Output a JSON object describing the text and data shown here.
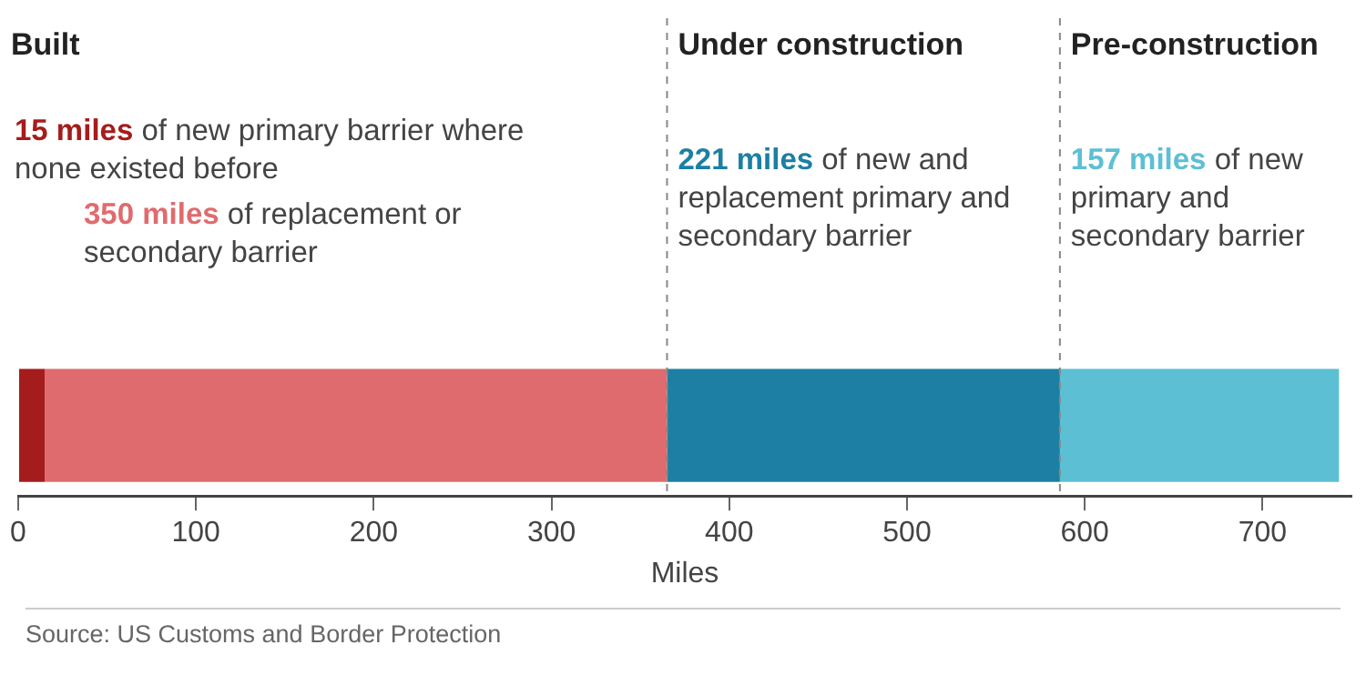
{
  "chart_data": {
    "type": "bar",
    "orientation": "horizontal",
    "stacked": true,
    "categories": [
      null
    ],
    "series": [
      {
        "color": "#a51c1c",
        "values": [
          15
        ]
      },
      {
        "color": "#e06b6e",
        "values": [
          350
        ]
      },
      {
        "color": "#1c7fa3",
        "values": [
          221
        ]
      },
      {
        "color": "#5dbfd4",
        "values": [
          157
        ]
      }
    ],
    "xlabel": "Miles",
    "xlim": [
      0,
      750
    ],
    "xticks": [
      0,
      100,
      200,
      300,
      400,
      500,
      600,
      700
    ],
    "grid": false,
    "legend": false,
    "ref_lines": [
      {
        "axis": "x",
        "value": 365,
        "label": "Under construction",
        "line_style": "dashed",
        "color": "#888888"
      },
      {
        "axis": "x",
        "value": 586,
        "label": "Pre-construction",
        "line_style": "dashed",
        "color": "#888888"
      }
    ],
    "annotations": [
      "Built",
      "15 miles of new primary barrier where none existed before",
      "350 miles of replacement or secondary barrier",
      "221 miles of new and replacement primary and secondary barrier",
      "157 miles of new primary and secondary barrier",
      "Source: US Customs and Border Protection"
    ]
  }
}
